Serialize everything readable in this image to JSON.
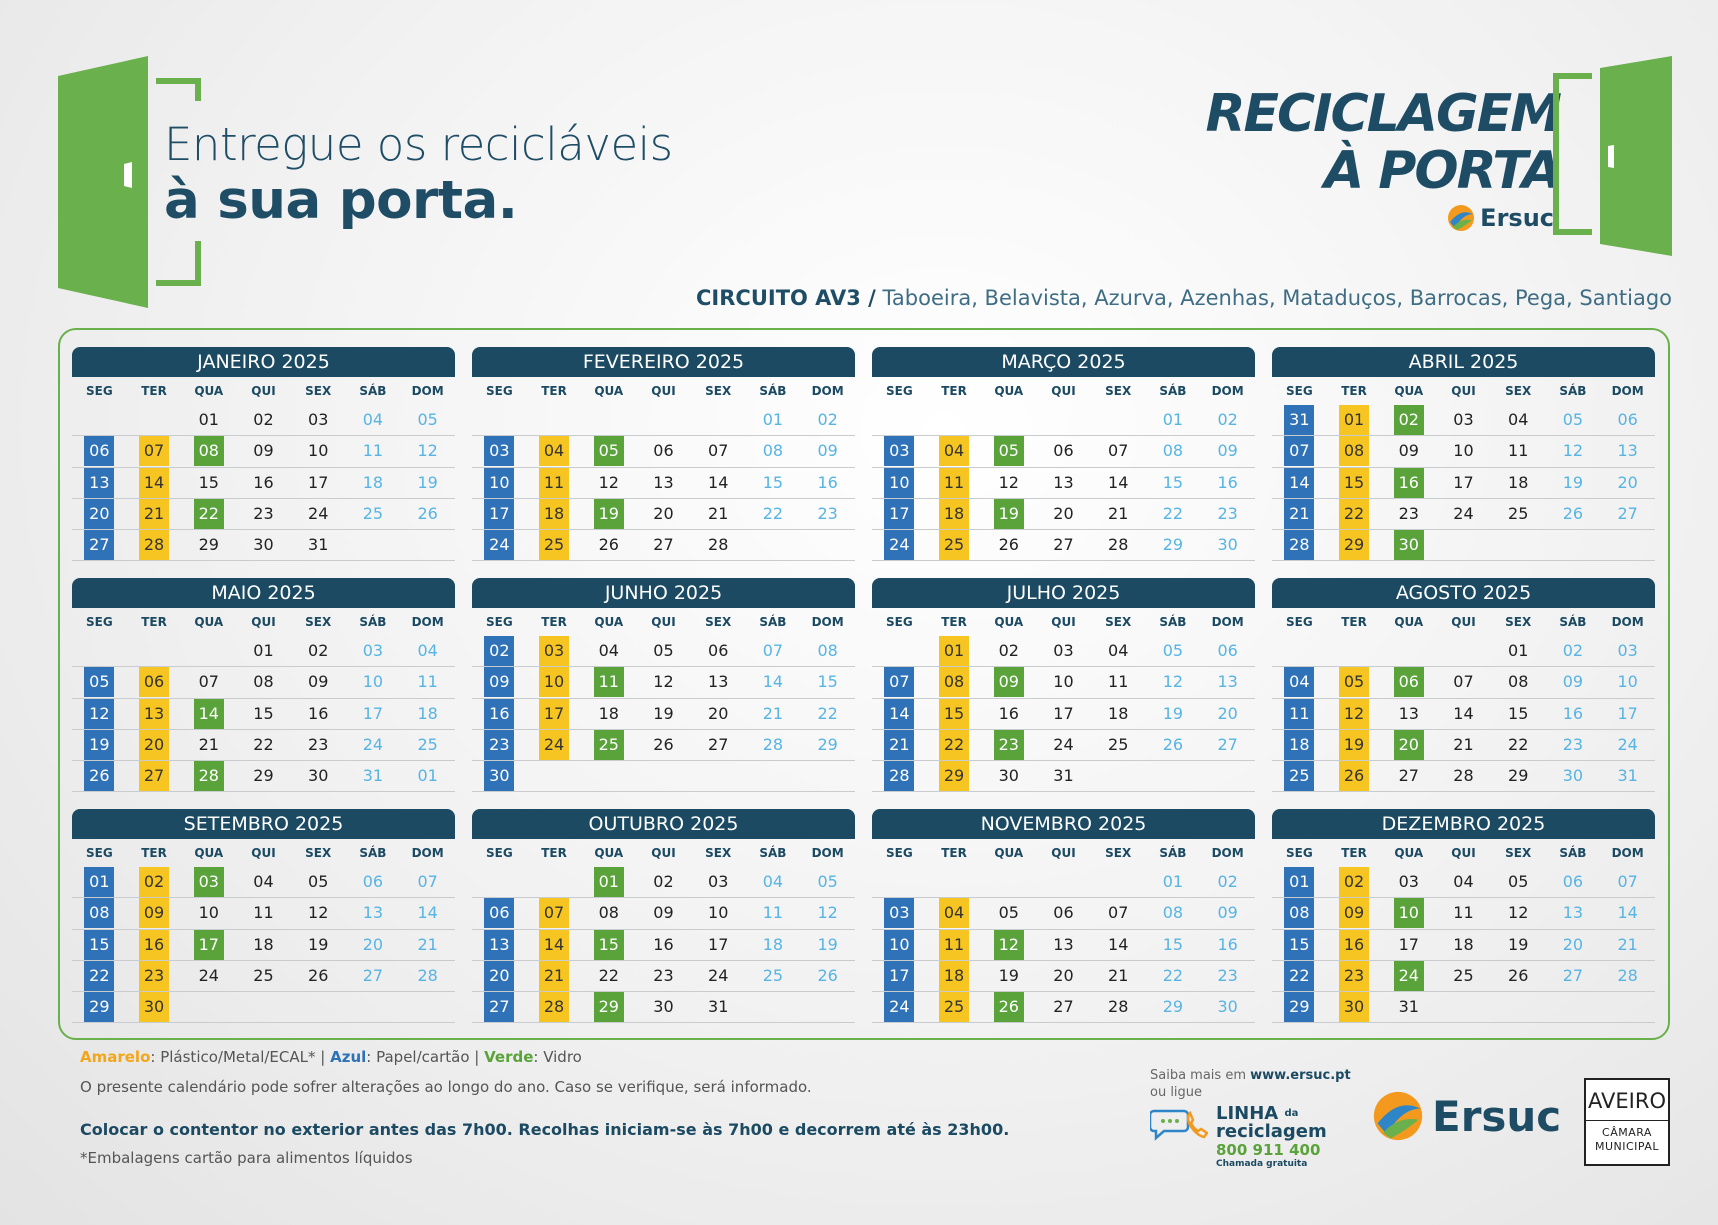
{
  "header": {
    "tagline_line1": "Entregue os recicláveis",
    "tagline_line2": "à sua porta.",
    "brand_line1": "RECICLAGEM",
    "brand_line2": "À PORTA",
    "brand_logo": "Ersuc",
    "circuit_label": "CIRCUITO AV3 /",
    "circuit_locations": "Taboeira, Belavista, Azurva, Azenhas, Mataduços, Barrocas, Pega, Santiago"
  },
  "colors": {
    "blue": "#2f72b8",
    "yellow": "#f6c521",
    "green": "#5aa33a",
    "weekend": "#57b4e3",
    "header": "#1b4a62"
  },
  "weekday_labels": [
    "SEG",
    "TER",
    "QUA",
    "QUI",
    "SEX",
    "SÁB",
    "DOM"
  ],
  "months": [
    {
      "title": "JANEIRO 2025",
      "rows": [
        [
          "",
          "",
          "01",
          "02",
          "03",
          "04",
          "05"
        ],
        [
          "06",
          "07",
          "08",
          "09",
          "10",
          "11",
          "12"
        ],
        [
          "13",
          "14",
          "15",
          "16",
          "17",
          "18",
          "19"
        ],
        [
          "20",
          "21",
          "22",
          "23",
          "24",
          "25",
          "26"
        ],
        [
          "27",
          "28",
          "29",
          "30",
          "31",
          "",
          ""
        ]
      ],
      "green": [
        "08",
        "22"
      ]
    },
    {
      "title": "FEVEREIRO 2025",
      "rows": [
        [
          "",
          "",
          "",
          "",
          "",
          "01",
          "02"
        ],
        [
          "03",
          "04",
          "05",
          "06",
          "07",
          "08",
          "09"
        ],
        [
          "10",
          "11",
          "12",
          "13",
          "14",
          "15",
          "16"
        ],
        [
          "17",
          "18",
          "19",
          "20",
          "21",
          "22",
          "23"
        ],
        [
          "24",
          "25",
          "26",
          "27",
          "28",
          "",
          ""
        ]
      ],
      "green": [
        "05",
        "19"
      ]
    },
    {
      "title": "MARÇO 2025",
      "rows": [
        [
          "",
          "",
          "",
          "",
          "",
          "01",
          "02"
        ],
        [
          "03",
          "04",
          "05",
          "06",
          "07",
          "08",
          "09"
        ],
        [
          "10",
          "11",
          "12",
          "13",
          "14",
          "15",
          "16"
        ],
        [
          "17",
          "18",
          "19",
          "20",
          "21",
          "22",
          "23"
        ],
        [
          "24",
          "25",
          "26",
          "27",
          "28",
          "29",
          "30"
        ]
      ],
      "green": [
        "05",
        "19"
      ]
    },
    {
      "title": "ABRIL 2025",
      "rows": [
        [
          "31",
          "01",
          "02",
          "03",
          "04",
          "05",
          "06"
        ],
        [
          "07",
          "08",
          "09",
          "10",
          "11",
          "12",
          "13"
        ],
        [
          "14",
          "15",
          "16",
          "17",
          "18",
          "19",
          "20"
        ],
        [
          "21",
          "22",
          "23",
          "24",
          "25",
          "26",
          "27"
        ],
        [
          "28",
          "29",
          "30",
          "",
          "",
          "",
          ""
        ]
      ],
      "green": [
        "02",
        "16",
        "30"
      ]
    },
    {
      "title": "MAIO 2025",
      "rows": [
        [
          "",
          "",
          "",
          "01",
          "02",
          "03",
          "04"
        ],
        [
          "05",
          "06",
          "07",
          "08",
          "09",
          "10",
          "11"
        ],
        [
          "12",
          "13",
          "14",
          "15",
          "16",
          "17",
          "18"
        ],
        [
          "19",
          "20",
          "21",
          "22",
          "23",
          "24",
          "25"
        ],
        [
          "26",
          "27",
          "28",
          "29",
          "30",
          "31",
          "01"
        ]
      ],
      "green": [
        "14",
        "28"
      ]
    },
    {
      "title": "JUNHO 2025",
      "rows": [
        [
          "02",
          "03",
          "04",
          "05",
          "06",
          "07",
          "08"
        ],
        [
          "09",
          "10",
          "11",
          "12",
          "13",
          "14",
          "15"
        ],
        [
          "16",
          "17",
          "18",
          "19",
          "20",
          "21",
          "22"
        ],
        [
          "23",
          "24",
          "25",
          "26",
          "27",
          "28",
          "29"
        ],
        [
          "30",
          "",
          "",
          "",
          "",
          "",
          ""
        ]
      ],
      "green": [
        "11",
        "25"
      ]
    },
    {
      "title": "JULHO 2025",
      "rows": [
        [
          "",
          "01",
          "02",
          "03",
          "04",
          "05",
          "06"
        ],
        [
          "07",
          "08",
          "09",
          "10",
          "11",
          "12",
          "13"
        ],
        [
          "14",
          "15",
          "16",
          "17",
          "18",
          "19",
          "20"
        ],
        [
          "21",
          "22",
          "23",
          "24",
          "25",
          "26",
          "27"
        ],
        [
          "28",
          "29",
          "30",
          "31",
          "",
          "",
          ""
        ]
      ],
      "green": [
        "09",
        "23"
      ]
    },
    {
      "title": "AGOSTO 2025",
      "rows": [
        [
          "",
          "",
          "",
          "",
          "01",
          "02",
          "03"
        ],
        [
          "04",
          "05",
          "06",
          "07",
          "08",
          "09",
          "10"
        ],
        [
          "11",
          "12",
          "13",
          "14",
          "15",
          "16",
          "17"
        ],
        [
          "18",
          "19",
          "20",
          "21",
          "22",
          "23",
          "24"
        ],
        [
          "25",
          "26",
          "27",
          "28",
          "29",
          "30",
          "31"
        ]
      ],
      "green": [
        "06",
        "20"
      ]
    },
    {
      "title": "SETEMBRO 2025",
      "rows": [
        [
          "01",
          "02",
          "03",
          "04",
          "05",
          "06",
          "07"
        ],
        [
          "08",
          "09",
          "10",
          "11",
          "12",
          "13",
          "14"
        ],
        [
          "15",
          "16",
          "17",
          "18",
          "19",
          "20",
          "21"
        ],
        [
          "22",
          "23",
          "24",
          "25",
          "26",
          "27",
          "28"
        ],
        [
          "29",
          "30",
          "",
          "",
          "",
          "",
          ""
        ]
      ],
      "green": [
        "03",
        "17"
      ]
    },
    {
      "title": "OUTUBRO 2025",
      "rows": [
        [
          "",
          "",
          "01",
          "02",
          "03",
          "04",
          "05"
        ],
        [
          "06",
          "07",
          "08",
          "09",
          "10",
          "11",
          "12"
        ],
        [
          "13",
          "14",
          "15",
          "16",
          "17",
          "18",
          "19"
        ],
        [
          "20",
          "21",
          "22",
          "23",
          "24",
          "25",
          "26"
        ],
        [
          "27",
          "28",
          "29",
          "30",
          "31",
          "",
          ""
        ]
      ],
      "green": [
        "01",
        "15",
        "29"
      ]
    },
    {
      "title": "NOVEMBRO 2025",
      "rows": [
        [
          "",
          "",
          "",
          "",
          "",
          "01",
          "02"
        ],
        [
          "03",
          "04",
          "05",
          "06",
          "07",
          "08",
          "09"
        ],
        [
          "10",
          "11",
          "12",
          "13",
          "14",
          "15",
          "16"
        ],
        [
          "17",
          "18",
          "19",
          "20",
          "21",
          "22",
          "23"
        ],
        [
          "24",
          "25",
          "26",
          "27",
          "28",
          "29",
          "30"
        ]
      ],
      "green": [
        "12",
        "26"
      ]
    },
    {
      "title": "DEZEMBRO 2025",
      "rows": [
        [
          "01",
          "02",
          "03",
          "04",
          "05",
          "06",
          "07"
        ],
        [
          "08",
          "09",
          "10",
          "11",
          "12",
          "13",
          "14"
        ],
        [
          "15",
          "16",
          "17",
          "18",
          "19",
          "20",
          "21"
        ],
        [
          "22",
          "23",
          "24",
          "25",
          "26",
          "27",
          "28"
        ],
        [
          "29",
          "30",
          "31",
          "",
          "",
          "",
          ""
        ]
      ],
      "green": [
        "10",
        "24"
      ]
    }
  ],
  "footer": {
    "legend_yellow": "Amarelo",
    "legend_yellow_text": ": Plástico/Metal/ECAL* |",
    "legend_blue": "Azul",
    "legend_blue_text": ": Papel/cartão |",
    "legend_green": "Verde",
    "legend_green_text": ": Vidro",
    "note_changes": "O presente calendário pode sofrer alterações ao longo do ano. Caso se verifique, será informado.",
    "note_container": "Colocar o contentor no exterior antes das 7h00. Recolhas iniciam-se às 7h00 e decorrem até às 23h00.",
    "note_packaging": "*Embalagens cartão para alimentos líquidos",
    "saiba_mais": "Saiba mais em",
    "website": "www.ersuc.pt",
    "ou_ligue": "ou ligue",
    "linha_l1": "LINHA",
    "linha_da": "da",
    "linha_l2": "reciclagem",
    "phone": "800 911 400",
    "chamada": "Chamada gratuita",
    "ersuc_logo": "Ersuc",
    "aveiro_l1": "AVEIRO",
    "aveiro_l2": "CÂMARA",
    "aveiro_l3": "MUNICIPAL"
  }
}
